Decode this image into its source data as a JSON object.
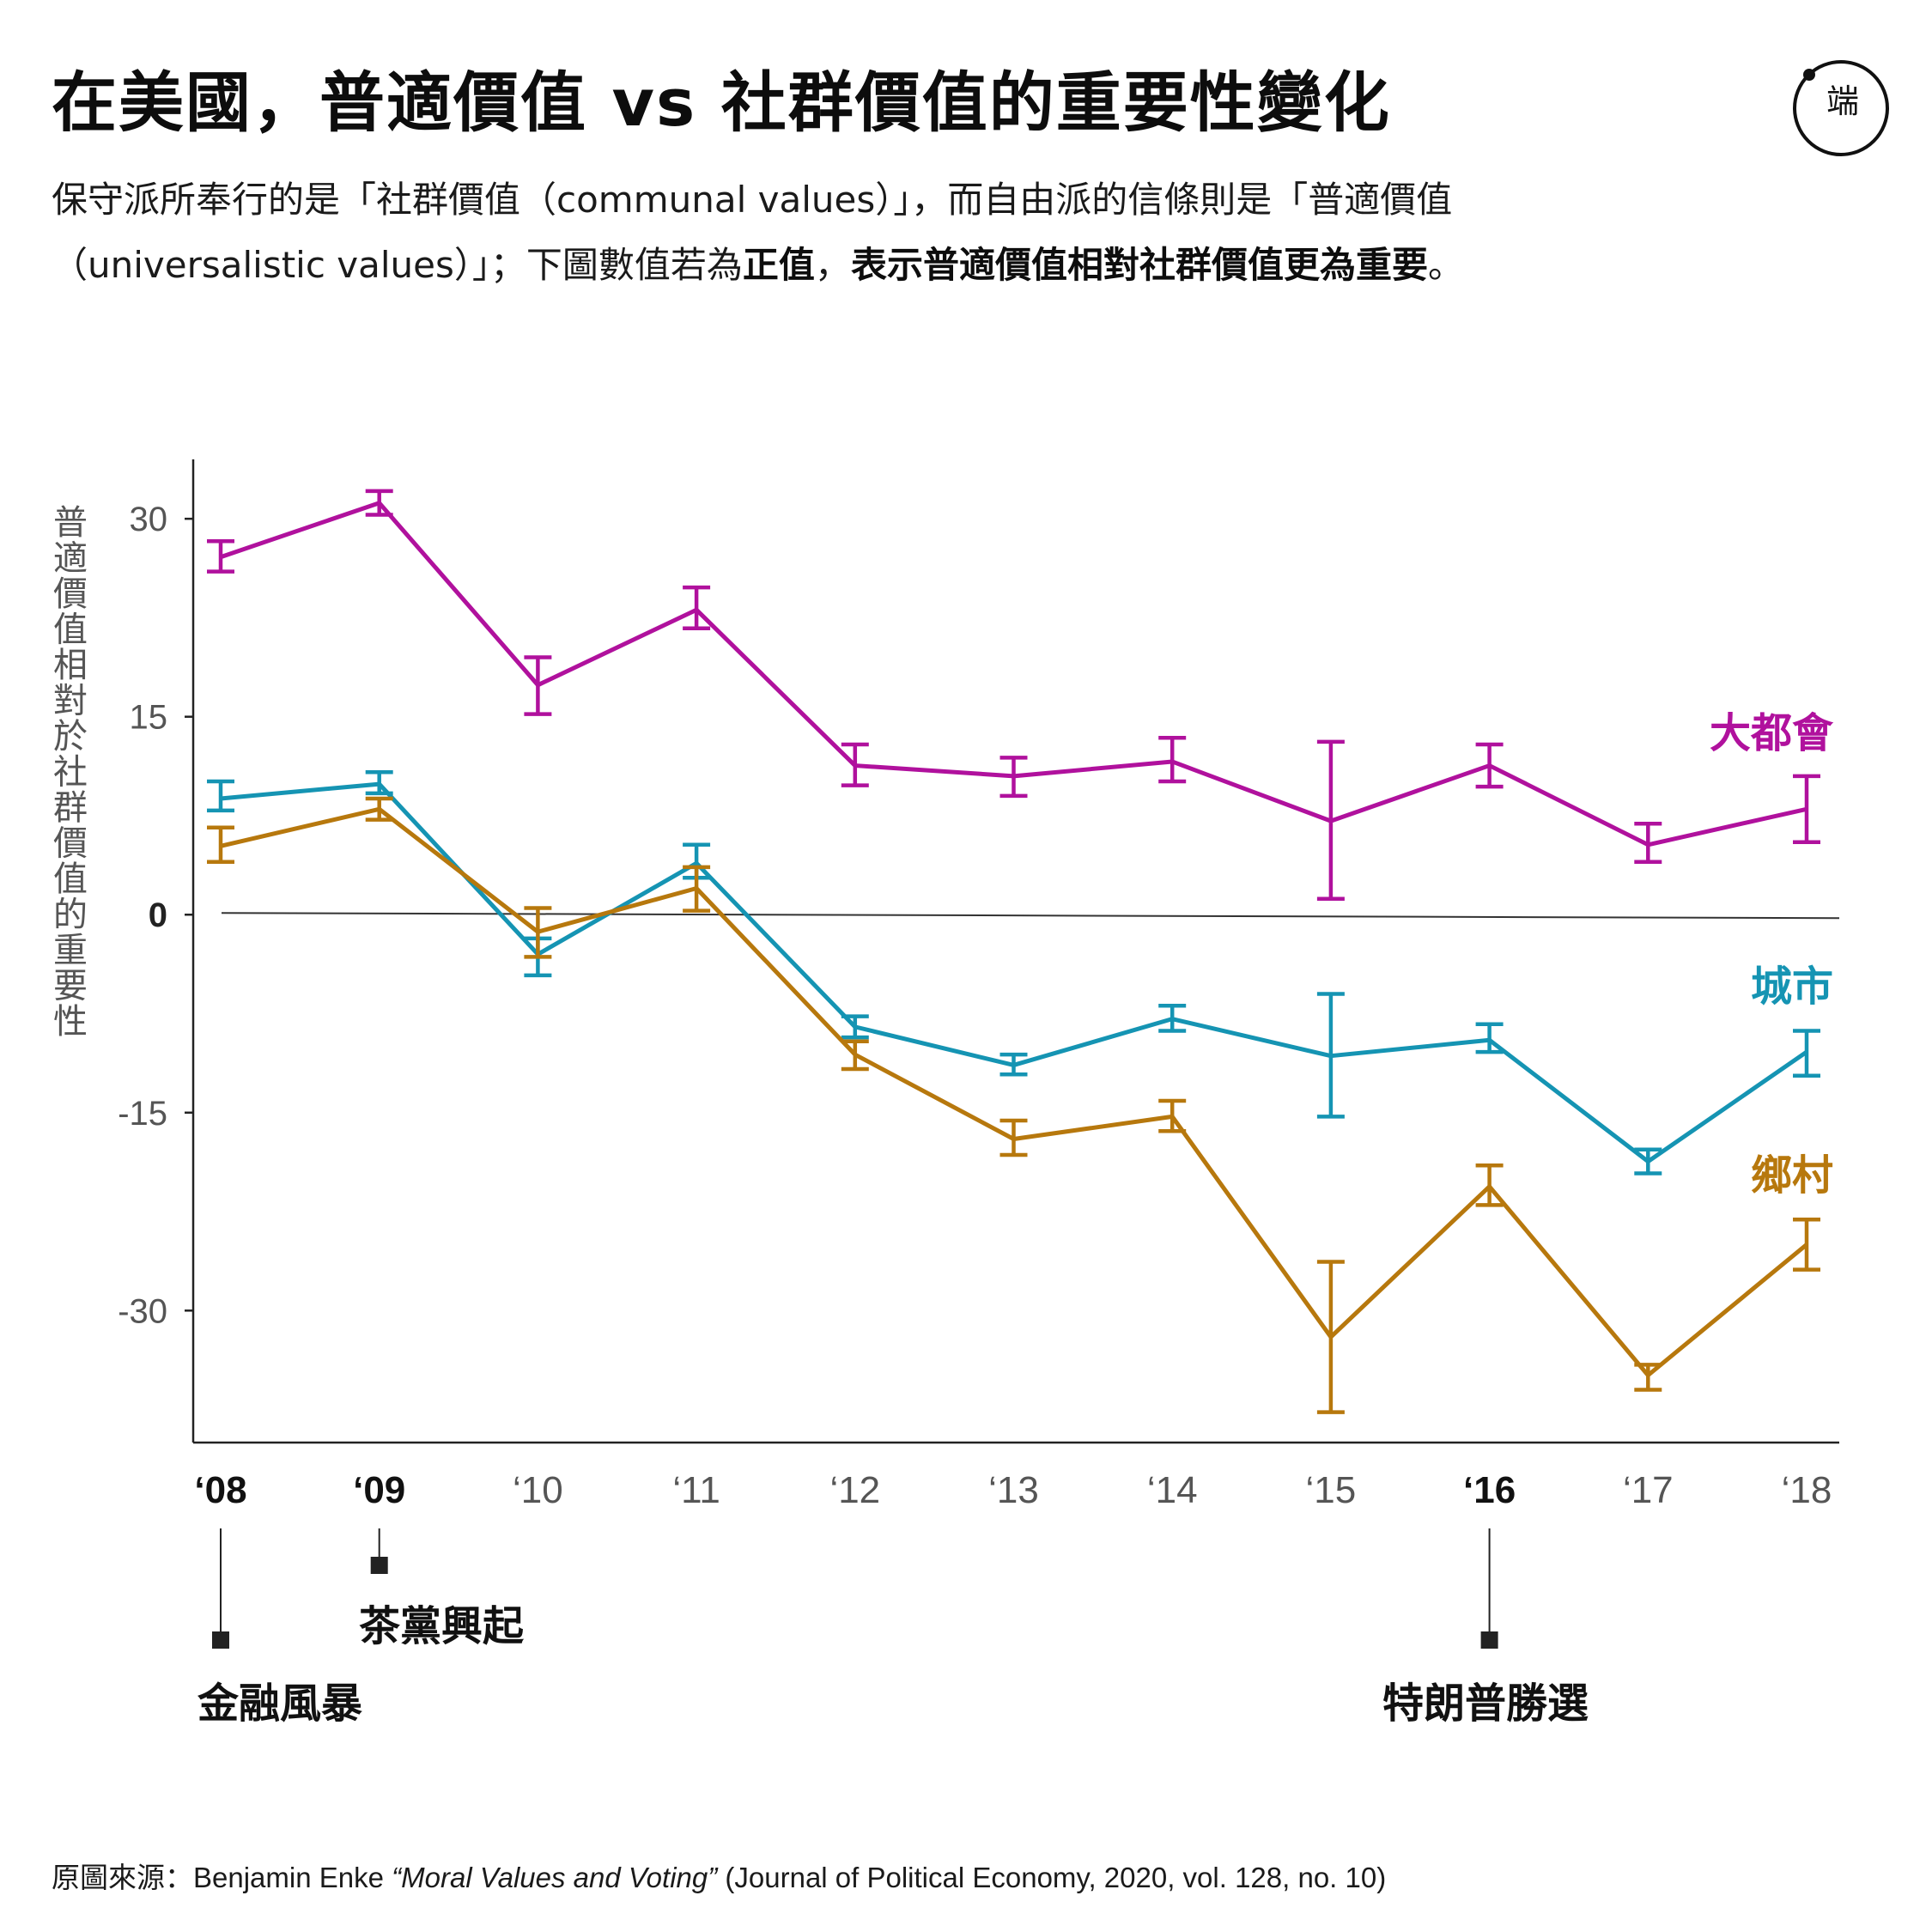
{
  "title": "在美國，普適價值 vs 社群價值的重要性變化",
  "subtitle": {
    "part1": "保守派所奉行的是「社群價值（communal values）」，而自由派的信條則是「普適價值（universalistic values）」；下圖數值若為",
    "bold1": "正值",
    "comma": "，",
    "bold2": "表示普適價值相對社群價值更為重要",
    "end": "。"
  },
  "logo": {
    "mark": "端"
  },
  "chart_data": {
    "type": "line",
    "x": [
      "‘08",
      "‘09",
      "‘10",
      "‘11",
      "‘12",
      "‘13",
      "‘14",
      "‘15",
      "‘16",
      "‘17",
      "‘18"
    ],
    "xlabel": "",
    "ylabel": "普適價值相對於社群價值的重要性",
    "yticks": [
      "30",
      "15",
      "0",
      "-15",
      "-30"
    ],
    "ylim": [
      -40,
      34.5
    ],
    "grid": false,
    "series": [
      {
        "name": "大都會",
        "color": "#b0119d",
        "values": [
          27.1,
          31.2,
          17.4,
          23.1,
          11.3,
          10.5,
          11.6,
          7.1,
          11.3,
          5.3,
          8.0
        ],
        "err": [
          [
            26.0,
            28.3
          ],
          [
            30.3,
            32.1
          ],
          [
            15.2,
            19.5
          ],
          [
            21.7,
            24.8
          ],
          [
            9.8,
            12.9
          ],
          [
            9.0,
            11.9
          ],
          [
            10.1,
            13.4
          ],
          [
            1.2,
            13.1
          ],
          [
            9.7,
            12.9
          ],
          [
            4.0,
            6.9
          ],
          [
            5.5,
            10.5
          ]
        ]
      },
      {
        "name": "城市",
        "color": "#1594b3",
        "values": [
          8.8,
          9.9,
          -3.0,
          3.9,
          -8.5,
          -11.4,
          -7.9,
          -10.7,
          -9.5,
          -18.7,
          -10.4
        ],
        "err": [
          [
            7.9,
            10.1
          ],
          [
            9.2,
            10.8
          ],
          [
            -4.6,
            -1.8
          ],
          [
            2.8,
            5.3
          ],
          [
            -9.3,
            -7.7
          ],
          [
            -12.1,
            -10.6
          ],
          [
            -8.8,
            -6.9
          ],
          [
            -15.3,
            -6.0
          ],
          [
            -10.4,
            -8.3
          ],
          [
            -19.6,
            -17.8
          ],
          [
            -12.2,
            -8.8
          ]
        ]
      },
      {
        "name": "鄉村",
        "color": "#b7780d",
        "values": [
          5.2,
          8.0,
          -1.3,
          2.0,
          -10.6,
          -17.0,
          -15.3,
          -32.0,
          -20.6,
          -34.9,
          -25.0
        ],
        "err": [
          [
            4.0,
            6.6
          ],
          [
            7.2,
            8.8
          ],
          [
            -3.2,
            0.5
          ],
          [
            0.3,
            3.6
          ],
          [
            -11.7,
            -9.6
          ],
          [
            -18.2,
            -15.6
          ],
          [
            -16.4,
            -14.1
          ],
          [
            -37.7,
            -26.3
          ],
          [
            -22.0,
            -19.0
          ],
          [
            -36.0,
            -34.1
          ],
          [
            -26.9,
            -23.1
          ]
        ]
      }
    ],
    "annotations": [
      {
        "x_index": 0,
        "label": "金融風暴"
      },
      {
        "x_index": 1,
        "label": "茶黨興起"
      },
      {
        "x_index": 8,
        "label": "特朗普勝選"
      }
    ],
    "bold_ticks": [
      "0",
      "‘08",
      "‘09",
      "‘16"
    ]
  },
  "source": {
    "prefix": "原圖來源：Benjamin Enke ",
    "work": "“Moral Values and Voting”",
    "suffix": " (Journal of Political Economy, 2020, vol. 128, no. 10)"
  }
}
